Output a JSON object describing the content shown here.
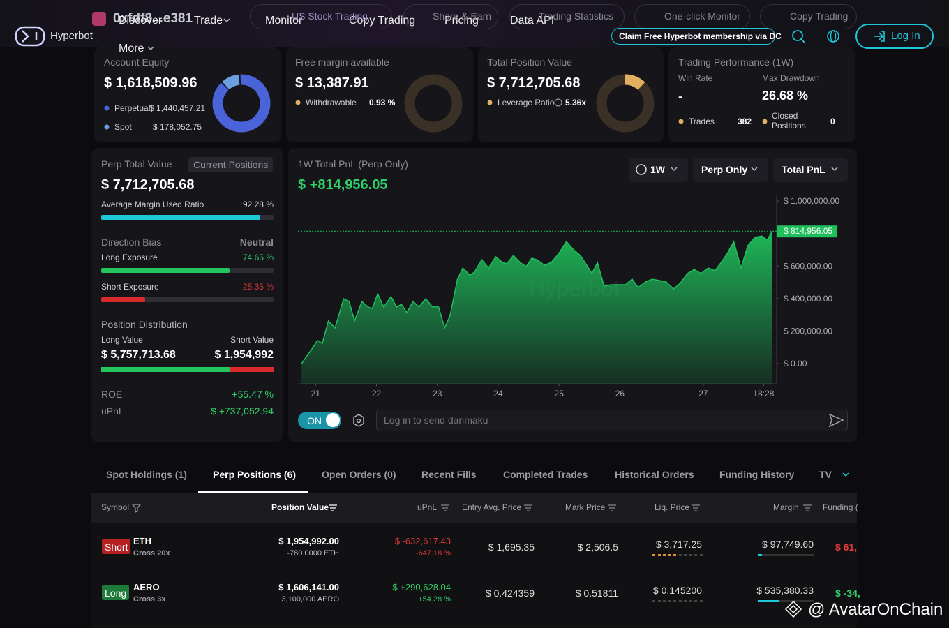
{
  "header": {
    "brand": "Hyperbot",
    "wallet": "0xfdf8...e381",
    "nav": [
      "Discover",
      "Trade",
      "Monitor",
      "Copy Trading",
      "Pricing",
      "Data API",
      "More"
    ],
    "quick_links": [
      "US Stock Trading",
      "Share & Earn",
      "Trading Statistics",
      "One-click Monitor",
      "Copy Trading"
    ],
    "promo": "Claim Free Hyperbot membership via DC",
    "login": "Log In"
  },
  "summary": {
    "account_equity": {
      "label": "Account Equity",
      "value": "$ 1,618,509.96",
      "breakdown": [
        {
          "name": "Perpetual",
          "value": 1440457.21,
          "value_label": "$ 1,440,457.21",
          "color": "#4a63d8"
        },
        {
          "name": "Spot",
          "value": 178052.75,
          "value_label": "$ 178,052.75",
          "color": "#6a9fe0"
        }
      ]
    },
    "free_margin": {
      "label": "Free margin available",
      "value": "$ 13,387.91",
      "detail_label": "Withdrawable",
      "detail_value": "0.93 %"
    },
    "position_value": {
      "label": "Total Position Value",
      "value": "$ 7,712,705.68",
      "detail_label": "Leverage Ratio",
      "detail_value": "5.36x"
    },
    "performance": {
      "label": "Trading Performance (1W)",
      "win_rate_label": "Win Rate",
      "win_rate": "-",
      "max_drawdown_label": "Max Drawdown",
      "max_drawdown": "26.68 %",
      "trades_label": "Trades",
      "trades": 382,
      "closed_label": "Closed Positions",
      "closed": 0
    }
  },
  "perp_panel": {
    "label": "Perp Total Value",
    "tab": "Current Positions",
    "value": "$ 7,712,705.68",
    "margin_ratio_label": "Average Margin Used Ratio",
    "margin_ratio": {
      "value": 92.28,
      "label": "92.28 %"
    },
    "bias_label": "Direction Bias",
    "bias": "Neutral",
    "long_label": "Long Exposure",
    "long": {
      "value": 74.65,
      "label": "74.65 %"
    },
    "short_label": "Short Exposure",
    "short": {
      "value": 25.35,
      "label": "25.35 %"
    },
    "distribution_label": "Position Distribution",
    "long_value_label": "Long Value",
    "long_value": {
      "value": 5757713.68,
      "label": "$ 5,757,713.68"
    },
    "short_value_label": "Short Value",
    "short_value": {
      "value": 1954992,
      "label": "$ 1,954,992"
    },
    "roe_label": "ROE",
    "roe": "+55.47 %",
    "upnl_label": "uPnL",
    "upnl": "$ +737,052.94"
  },
  "chart_data": {
    "type": "area",
    "title": "1W Total PnL (Perp Only)",
    "total": "$ +814,956.05",
    "filters": [
      "1W",
      "Perp Only",
      "Total PnL"
    ],
    "watermark": "Hyperbot",
    "color": "#1fbf5b",
    "x": [
      20.77,
      20.94,
      21.03,
      21.11,
      21.21,
      21.32,
      21.46,
      21.55,
      21.64,
      21.76,
      21.86,
      21.93,
      22.02,
      22.12,
      22.24,
      22.33,
      22.41,
      22.5,
      22.6,
      22.7,
      22.81,
      22.92,
      23.02,
      23.12,
      23.21,
      23.33,
      23.42,
      23.53,
      23.61,
      23.73,
      23.84,
      23.96,
      24.07,
      24.14,
      24.25,
      24.36,
      24.46,
      24.55,
      24.64,
      24.76,
      24.87,
      24.99,
      25.12,
      25.24,
      25.35,
      25.44,
      25.54,
      25.63,
      25.74,
      25.86,
      25.97,
      26.09,
      26.2,
      26.3,
      26.42,
      26.53,
      26.65,
      26.76,
      26.88,
      26.99,
      27.11,
      27.22,
      27.33,
      27.45,
      27.56,
      27.68,
      27.77,
      27.87,
      27.99,
      28.1,
      28.22,
      28.33,
      28.42,
      28.5
    ],
    "values": [
      0,
      90000,
      142000,
      124000,
      262000,
      219000,
      399000,
      382000,
      262000,
      382000,
      348000,
      339000,
      429000,
      348000,
      412000,
      348000,
      365000,
      313000,
      382000,
      348000,
      399000,
      348000,
      348000,
      219000,
      296000,
      519000,
      588000,
      545000,
      562000,
      639000,
      588000,
      657000,
      622000,
      614000,
      665000,
      622000,
      597000,
      648000,
      639000,
      605000,
      622000,
      674000,
      751000,
      700000,
      665000,
      614000,
      554000,
      622000,
      476000,
      485000,
      485000,
      485000,
      519000,
      468000,
      502000,
      519000,
      511000,
      502000,
      459000,
      494000,
      554000,
      579000,
      554000,
      588000,
      571000,
      631000,
      682000,
      751000,
      588000,
      725000,
      777000,
      785000,
      760000,
      814956.05
    ],
    "value_labels": [
      null,
      null,
      null,
      null,
      null,
      null,
      null,
      null,
      null,
      null,
      null,
      null,
      null,
      null,
      null,
      null,
      null,
      null,
      null,
      null,
      null,
      null,
      null,
      null,
      null,
      null,
      null,
      null,
      null,
      null,
      null,
      null,
      null,
      null,
      null,
      null,
      null,
      null,
      null,
      null,
      null,
      null,
      null,
      null,
      null,
      null,
      null,
      null,
      null,
      null,
      null,
      null,
      null,
      null,
      null,
      null,
      null,
      null,
      null,
      null,
      null,
      null,
      null,
      null,
      null,
      null,
      null,
      null,
      null,
      null,
      null,
      null,
      null,
      "$ 814,956.05"
    ],
    "xlim": [
      20.71,
      28.54
    ],
    "xticks": [
      21,
      22,
      23,
      24,
      25,
      26,
      {
        "value": 27.37,
        "label": "27"
      },
      {
        "value": 28.36,
        "label": "18:28"
      }
    ],
    "ylim": [
      -125000,
      1035000
    ],
    "yticks": [
      {
        "value": 1000000,
        "label": "$ 1,000,000.00"
      },
      {
        "value": 600000,
        "label": "$ 600,000.00"
      },
      {
        "value": 400000,
        "label": "$ 400,000.00"
      },
      {
        "value": 200000,
        "label": "$ 200,000.00"
      },
      {
        "value": 0,
        "label": "$ 0.00"
      }
    ]
  },
  "chat": {
    "toggle": "ON",
    "placeholder": "Log in to send danmaku"
  },
  "positions": {
    "tabs": [
      "Spot Holdings (1)",
      "Perp Positions (6)",
      "Open Orders (0)",
      "Recent Fills",
      "Completed Trades",
      "Historical Orders",
      "Funding History",
      "TV"
    ],
    "columns": [
      "Symbol",
      "Position Value",
      "uPnL",
      "Entry Avg. Price",
      "Mark Price",
      "Liq. Price",
      "Margin",
      "Funding ("
    ],
    "rows": [
      {
        "side": "Short",
        "symbol": "ETH",
        "mode": "Cross 20x",
        "position_value": "$ 1,954,992.00",
        "size": "-780.0000 ETH",
        "upnl": "$ -632,617.43",
        "upnl_pct": "-647.18 %",
        "entry": "$ 1,695.35",
        "mark": "$ 2,506.5",
        "liq": "$ 3,717.25",
        "margin": "$ 97,749.60",
        "funding": "$ 61,"
      },
      {
        "side": "Long",
        "symbol": "AERO",
        "mode": "Cross 3x",
        "position_value": "$ 1,606,141.00",
        "size": "3,100,000 AERO",
        "upnl": "$ +290,628.04",
        "upnl_pct": "+54.28 %",
        "entry": "$ 0.424359",
        "mark": "$ 0.51811",
        "liq": "$ 0.145200",
        "margin": "$ 535,380.33",
        "funding": "$ -34,"
      }
    ]
  },
  "watermark": "@ AvatarOnChain"
}
